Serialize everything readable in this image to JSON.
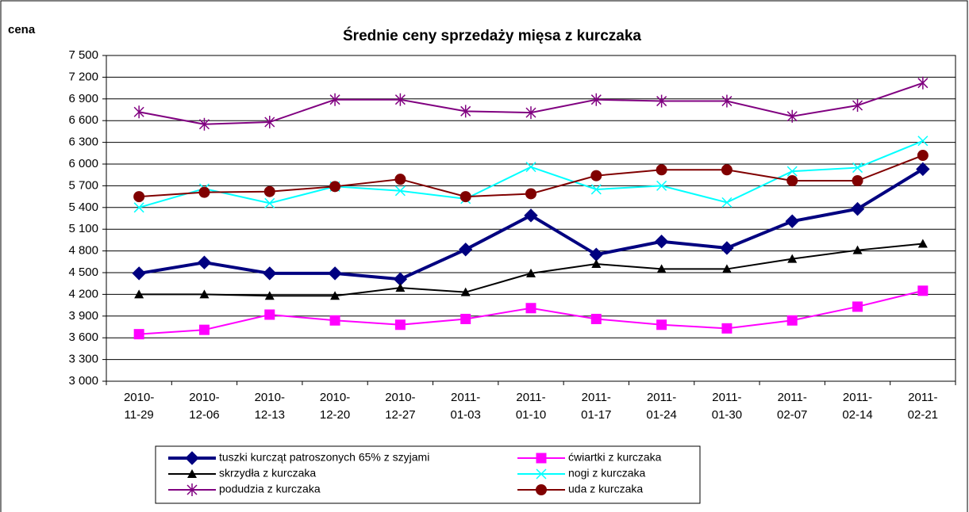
{
  "chart_data": {
    "type": "line",
    "title": "Średnie ceny sprzedaży mięsa z kurczaka",
    "y_label": "cena",
    "categories": [
      "2010-11-29",
      "2010-12-06",
      "2010-12-13",
      "2010-12-20",
      "2010-12-27",
      "2011-01-03",
      "2011-01-10",
      "2011-01-17",
      "2011-01-24",
      "2011-01-30",
      "2011-02-07",
      "2011-02-14",
      "2011-02-21"
    ],
    "ylim": [
      3000,
      7500
    ],
    "yticks": [
      {
        "value": 3000,
        "label": "3 000"
      },
      {
        "value": 3300,
        "label": "3 300"
      },
      {
        "value": 3600,
        "label": "3 600"
      },
      {
        "value": 3900,
        "label": "3 900"
      },
      {
        "value": 4200,
        "label": "4 200"
      },
      {
        "value": 4500,
        "label": "4 500"
      },
      {
        "value": 4800,
        "label": "4 800"
      },
      {
        "value": 5100,
        "label": "5 100"
      },
      {
        "value": 5400,
        "label": "5 400"
      },
      {
        "value": 5700,
        "label": "5 700"
      },
      {
        "value": 6000,
        "label": "6 000"
      },
      {
        "value": 6300,
        "label": "6 300"
      },
      {
        "value": 6600,
        "label": "6 600"
      },
      {
        "value": 6900,
        "label": "6 900"
      },
      {
        "value": 7200,
        "label": "7 200"
      },
      {
        "value": 7500,
        "label": "7 500"
      }
    ],
    "grid": true,
    "legend": "bottom",
    "series": [
      {
        "name": "tuszki kurcząt patroszonych 65% z szyjami",
        "color": "#000080",
        "marker": "diamond",
        "values": [
          4490,
          4640,
          4490,
          4490,
          4410,
          4820,
          5290,
          4750,
          4930,
          4840,
          5210,
          5380,
          5930
        ]
      },
      {
        "name": "ćwiartki z kurczaka",
        "color": "#ff00ff",
        "marker": "square",
        "values": [
          3650,
          3710,
          3920,
          3840,
          3780,
          3860,
          4010,
          3860,
          3780,
          3730,
          3840,
          4030,
          4250
        ]
      },
      {
        "name": "skrzydła z kurczaka",
        "color": "#000000",
        "marker": "triangle",
        "values": [
          4200,
          4200,
          4180,
          4180,
          4290,
          4230,
          4490,
          4620,
          4550,
          4550,
          4690,
          4810,
          4900
        ]
      },
      {
        "name": "nogi z kurczaka",
        "color": "#00ffff",
        "marker": "x",
        "values": [
          5400,
          5660,
          5460,
          5690,
          5630,
          5520,
          5960,
          5650,
          5700,
          5470,
          5900,
          5950,
          6320
        ]
      },
      {
        "name": "podudzia z kurczaka",
        "color": "#800080",
        "marker": "asterisk",
        "values": [
          6720,
          6550,
          6580,
          6890,
          6890,
          6730,
          6710,
          6890,
          6870,
          6870,
          6660,
          6810,
          7120
        ]
      },
      {
        "name": "uda z kurczaka",
        "color": "#800000",
        "marker": "circle",
        "values": [
          5550,
          5610,
          5620,
          5690,
          5790,
          5550,
          5590,
          5840,
          5920,
          5920,
          5770,
          5770,
          6120
        ]
      }
    ]
  }
}
